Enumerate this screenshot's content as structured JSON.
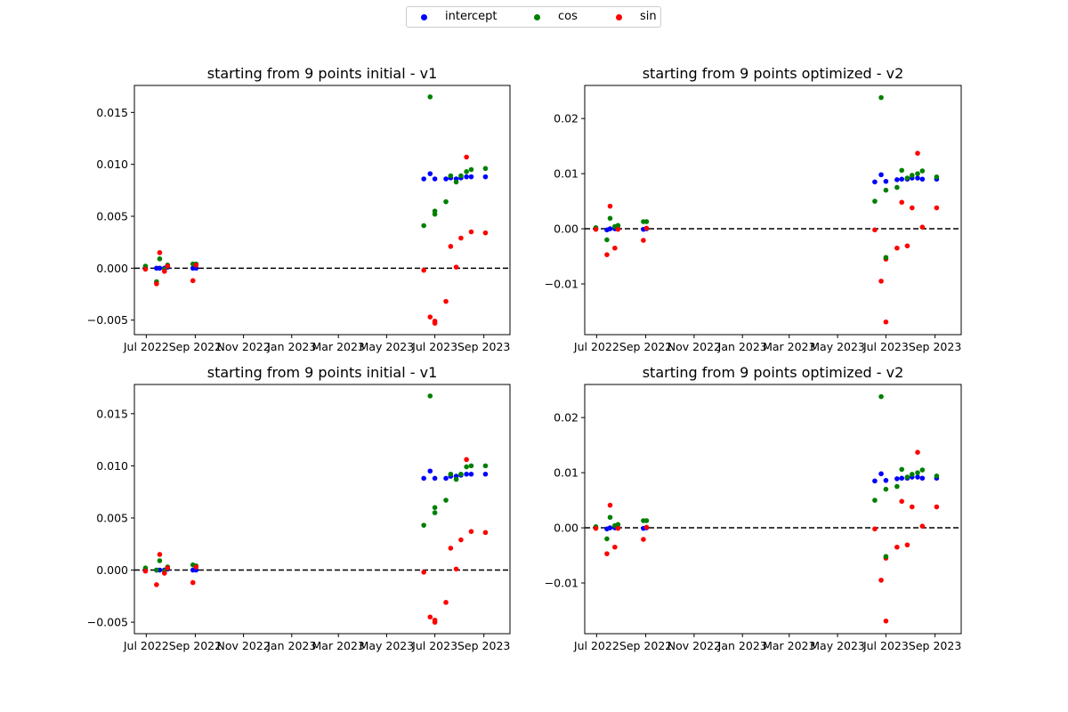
{
  "legend": {
    "location": "top-center",
    "items": [
      {
        "label": "intercept",
        "color": "#0000ff"
      },
      {
        "label": "cos",
        "color": "#008000"
      },
      {
        "label": "sin",
        "color": "#ff0000"
      }
    ]
  },
  "chart_data": [
    {
      "type": "scatter",
      "title": "starting from 9 points initial - v1",
      "xlabel": "",
      "ylabel": "",
      "x_ticks": [
        "2022-07-01",
        "2022-09-01",
        "2022-11-01",
        "2023-01-01",
        "2023-03-01",
        "2023-05-01",
        "2023-07-01",
        "2023-09-01"
      ],
      "x_tick_labels": [
        "Jul 2022",
        "Sep 2022",
        "Nov 2022",
        "Jan 2023",
        "Mar 2023",
        "May 2023",
        "Jul 2023",
        "Sep 2023"
      ],
      "xlim": [
        "2022-06-16",
        "2023-10-04"
      ],
      "ylim": [
        -0.0064,
        0.0176
      ],
      "y_ticks": [
        -0.005,
        0.0,
        0.005,
        0.01,
        0.015
      ],
      "y_tick_labels": [
        "−0.005",
        "0.000",
        "0.005",
        "0.010",
        "0.015"
      ],
      "reference_line": {
        "y": 0,
        "style": "dashed",
        "color": "#000000"
      },
      "x": [
        "2022-06-30",
        "2022-07-14",
        "2022-07-18",
        "2022-07-24",
        "2022-07-28",
        "2022-08-29",
        "2022-09-02",
        "2023-06-17",
        "2023-06-25",
        "2023-07-01",
        "2023-07-15",
        "2023-07-21",
        "2023-07-28",
        "2023-08-03",
        "2023-08-10",
        "2023-08-16",
        "2023-09-03"
      ],
      "series": [
        {
          "name": "intercept",
          "color": "#0000ff",
          "values": [
            0.0,
            0.0,
            0.0,
            0.0,
            0.0001,
            0.0,
            0.0,
            0.0086,
            0.0091,
            0.0086,
            0.0086,
            0.0087,
            0.0086,
            0.0087,
            0.0088,
            0.0088,
            0.0088
          ]
        },
        {
          "name": "cos",
          "color": "#008000",
          "values": [
            0.0002,
            -0.0013,
            0.0009,
            -0.0001,
            0.0003,
            0.0004,
            0.0004,
            0.0041,
            0.0165,
            0.0055,
            0.0064,
            0.0089,
            0.0083,
            0.0089,
            0.0093,
            0.0095,
            0.0096
          ]
        },
        {
          "name": "sin",
          "color": "#ff0000",
          "values": [
            -0.0001,
            -0.0015,
            0.0015,
            -0.0003,
            0.0002,
            -0.0012,
            0.0003,
            -0.0002,
            -0.0047,
            -0.0053,
            -0.0032,
            0.0021,
            0.0001,
            0.0029,
            0.0107,
            0.0035,
            0.0034
          ]
        },
        {
          "name": "",
          "color": "#008000",
          "values": [
            null,
            null,
            null,
            null,
            null,
            null,
            null,
            null,
            null,
            0.0052,
            null,
            null,
            null,
            null,
            null,
            null,
            null
          ]
        },
        {
          "name": "",
          "color": "#ff0000",
          "values": [
            null,
            null,
            null,
            null,
            null,
            null,
            null,
            null,
            null,
            -0.0051,
            null,
            null,
            null,
            null,
            null,
            null,
            null
          ]
        }
      ]
    },
    {
      "type": "scatter",
      "title": "starting from 9 points optimized - v2",
      "xlabel": "",
      "ylabel": "",
      "x_ticks": [
        "2022-07-01",
        "2022-09-01",
        "2022-11-01",
        "2023-01-01",
        "2023-03-01",
        "2023-05-01",
        "2023-07-01",
        "2023-09-01"
      ],
      "x_tick_labels": [
        "Jul 2022",
        "Sep 2022",
        "Nov 2022",
        "Jan 2023",
        "Mar 2023",
        "May 2023",
        "Jul 2023",
        "Sep 2023"
      ],
      "xlim": [
        "2022-06-16",
        "2023-10-04"
      ],
      "ylim": [
        -0.0192,
        0.026
      ],
      "y_ticks": [
        -0.01,
        0.0,
        0.01,
        0.02
      ],
      "y_tick_labels": [
        "−0.01",
        "0.00",
        "0.01",
        "0.02"
      ],
      "reference_line": {
        "y": 0,
        "style": "dashed",
        "color": "#000000"
      },
      "x": [
        "2022-06-30",
        "2022-07-14",
        "2022-07-18",
        "2022-07-24",
        "2022-07-28",
        "2022-08-29",
        "2022-09-02",
        "2023-06-17",
        "2023-06-25",
        "2023-07-01",
        "2023-07-15",
        "2023-07-21",
        "2023-07-28",
        "2023-08-03",
        "2023-08-10",
        "2023-08-16",
        "2023-09-03"
      ],
      "series": [
        {
          "name": "intercept",
          "color": "#0000ff",
          "values": [
            0.0,
            -0.0002,
            0.0,
            0.0,
            0.0,
            -0.0001,
            0.0,
            0.0085,
            0.0098,
            0.0086,
            0.0089,
            0.009,
            0.009,
            0.0092,
            0.0092,
            0.009,
            0.009
          ]
        },
        {
          "name": "cos",
          "color": "#008000",
          "values": [
            0.0002,
            -0.002,
            0.0019,
            0.0004,
            0.0006,
            0.0013,
            0.0013,
            0.005,
            0.0238,
            0.007,
            0.0075,
            0.0106,
            0.0092,
            0.0097,
            0.01,
            0.0105,
            0.0094
          ]
        },
        {
          "name": "sin",
          "color": "#ff0000",
          "values": [
            -0.0001,
            -0.0047,
            0.0041,
            -0.0035,
            -0.0001,
            -0.0021,
            0.0001,
            -0.0002,
            -0.0095,
            -0.0055,
            -0.0035,
            0.0048,
            -0.0031,
            0.0038,
            0.0137,
            0.0003,
            0.0038
          ]
        },
        {
          "name": "",
          "color": "#008000",
          "values": [
            null,
            null,
            null,
            null,
            null,
            null,
            null,
            null,
            null,
            -0.0052,
            null,
            null,
            null,
            null,
            null,
            null,
            null
          ]
        },
        {
          "name": "",
          "color": "#ff0000",
          "values": [
            null,
            null,
            null,
            null,
            null,
            null,
            null,
            null,
            null,
            -0.0169,
            null,
            null,
            null,
            null,
            null,
            null,
            null
          ]
        }
      ]
    },
    {
      "type": "scatter",
      "title": "starting from 9 points initial - v1",
      "xlabel": "",
      "ylabel": "",
      "x_ticks": [
        "2022-07-01",
        "2022-09-01",
        "2022-11-01",
        "2023-01-01",
        "2023-03-01",
        "2023-05-01",
        "2023-07-01",
        "2023-09-01"
      ],
      "x_tick_labels": [
        "Jul 2022",
        "Sep 2022",
        "Nov 2022",
        "Jan 2023",
        "Mar 2023",
        "May 2023",
        "Jul 2023",
        "Sep 2023"
      ],
      "xlim": [
        "2022-06-16",
        "2023-10-04"
      ],
      "ylim": [
        -0.0061,
        0.0178
      ],
      "y_ticks": [
        -0.005,
        0.0,
        0.005,
        0.01,
        0.015
      ],
      "y_tick_labels": [
        "−0.005",
        "0.000",
        "0.005",
        "0.010",
        "0.015"
      ],
      "reference_line": {
        "y": 0,
        "style": "dashed",
        "color": "#000000"
      },
      "x": [
        "2022-06-30",
        "2022-07-14",
        "2022-07-18",
        "2022-07-24",
        "2022-07-28",
        "2022-08-29",
        "2022-09-02",
        "2023-06-17",
        "2023-06-25",
        "2023-07-01",
        "2023-07-15",
        "2023-07-21",
        "2023-07-28",
        "2023-08-03",
        "2023-08-10",
        "2023-08-16",
        "2023-09-03"
      ],
      "series": [
        {
          "name": "intercept",
          "color": "#0000ff",
          "values": [
            0.0,
            0.0,
            0.0,
            0.0,
            0.0001,
            0.0,
            0.0,
            0.0088,
            0.0095,
            0.0088,
            0.0088,
            0.009,
            0.009,
            0.0091,
            0.0092,
            0.0092,
            0.0092
          ]
        },
        {
          "name": "cos",
          "color": "#008000",
          "values": [
            0.0002,
            0.0,
            0.0009,
            -0.0001,
            0.0003,
            0.0005,
            0.0004,
            0.0043,
            0.0167,
            0.006,
            0.0067,
            0.0092,
            0.0087,
            0.0092,
            0.0099,
            0.01,
            0.01
          ]
        },
        {
          "name": "sin",
          "color": "#ff0000",
          "values": [
            -0.0001,
            -0.0014,
            0.0015,
            -0.0003,
            0.0002,
            -0.0012,
            0.0003,
            -0.0002,
            -0.0045,
            -0.005,
            -0.0031,
            0.0021,
            0.0001,
            0.0029,
            0.0106,
            0.0037,
            0.0036
          ]
        },
        {
          "name": "",
          "color": "#008000",
          "values": [
            null,
            null,
            null,
            null,
            null,
            null,
            null,
            null,
            null,
            0.0055,
            null,
            null,
            null,
            null,
            null,
            null,
            null
          ]
        },
        {
          "name": "",
          "color": "#ff0000",
          "values": [
            null,
            null,
            null,
            null,
            null,
            null,
            null,
            null,
            null,
            -0.0048,
            null,
            null,
            null,
            null,
            null,
            null,
            null
          ]
        }
      ]
    },
    {
      "type": "scatter",
      "title": "starting from 9 points optimized - v2",
      "xlabel": "",
      "ylabel": "",
      "x_ticks": [
        "2022-07-01",
        "2022-09-01",
        "2022-11-01",
        "2023-01-01",
        "2023-03-01",
        "2023-05-01",
        "2023-07-01",
        "2023-09-01"
      ],
      "x_tick_labels": [
        "Jul 2022",
        "Sep 2022",
        "Nov 2022",
        "Jan 2023",
        "Mar 2023",
        "May 2023",
        "Jul 2023",
        "Sep 2023"
      ],
      "xlim": [
        "2022-06-16",
        "2023-10-04"
      ],
      "ylim": [
        -0.0192,
        0.026
      ],
      "y_ticks": [
        -0.01,
        0.0,
        0.01,
        0.02
      ],
      "y_tick_labels": [
        "−0.01",
        "0.00",
        "0.01",
        "0.02"
      ],
      "reference_line": {
        "y": 0,
        "style": "dashed",
        "color": "#000000"
      },
      "x": [
        "2022-06-30",
        "2022-07-14",
        "2022-07-18",
        "2022-07-24",
        "2022-07-28",
        "2022-08-29",
        "2022-09-02",
        "2023-06-17",
        "2023-06-25",
        "2023-07-01",
        "2023-07-15",
        "2023-07-21",
        "2023-07-28",
        "2023-08-03",
        "2023-08-10",
        "2023-08-16",
        "2023-09-03"
      ],
      "series": [
        {
          "name": "intercept",
          "color": "#0000ff",
          "values": [
            0.0,
            -0.0002,
            0.0,
            0.0,
            0.0,
            -0.0001,
            0.0,
            0.0085,
            0.0098,
            0.0086,
            0.0089,
            0.009,
            0.009,
            0.0092,
            0.0092,
            0.009,
            0.009
          ]
        },
        {
          "name": "cos",
          "color": "#008000",
          "values": [
            0.0002,
            -0.002,
            0.0019,
            0.0004,
            0.0006,
            0.0013,
            0.0013,
            0.005,
            0.0238,
            0.007,
            0.0075,
            0.0106,
            0.0092,
            0.0097,
            0.01,
            0.0105,
            0.0094
          ]
        },
        {
          "name": "sin",
          "color": "#ff0000",
          "values": [
            -0.0001,
            -0.0047,
            0.0041,
            -0.0035,
            -0.0001,
            -0.0021,
            0.0001,
            -0.0002,
            -0.0095,
            -0.0055,
            -0.0035,
            0.0048,
            -0.0031,
            0.0038,
            0.0137,
            0.0003,
            0.0038
          ]
        },
        {
          "name": "",
          "color": "#008000",
          "values": [
            null,
            null,
            null,
            null,
            null,
            null,
            null,
            null,
            null,
            -0.0052,
            null,
            null,
            null,
            null,
            null,
            null,
            null
          ]
        },
        {
          "name": "",
          "color": "#ff0000",
          "values": [
            null,
            null,
            null,
            null,
            null,
            null,
            null,
            null,
            null,
            -0.0169,
            null,
            null,
            null,
            null,
            null,
            null,
            null
          ]
        }
      ]
    }
  ]
}
